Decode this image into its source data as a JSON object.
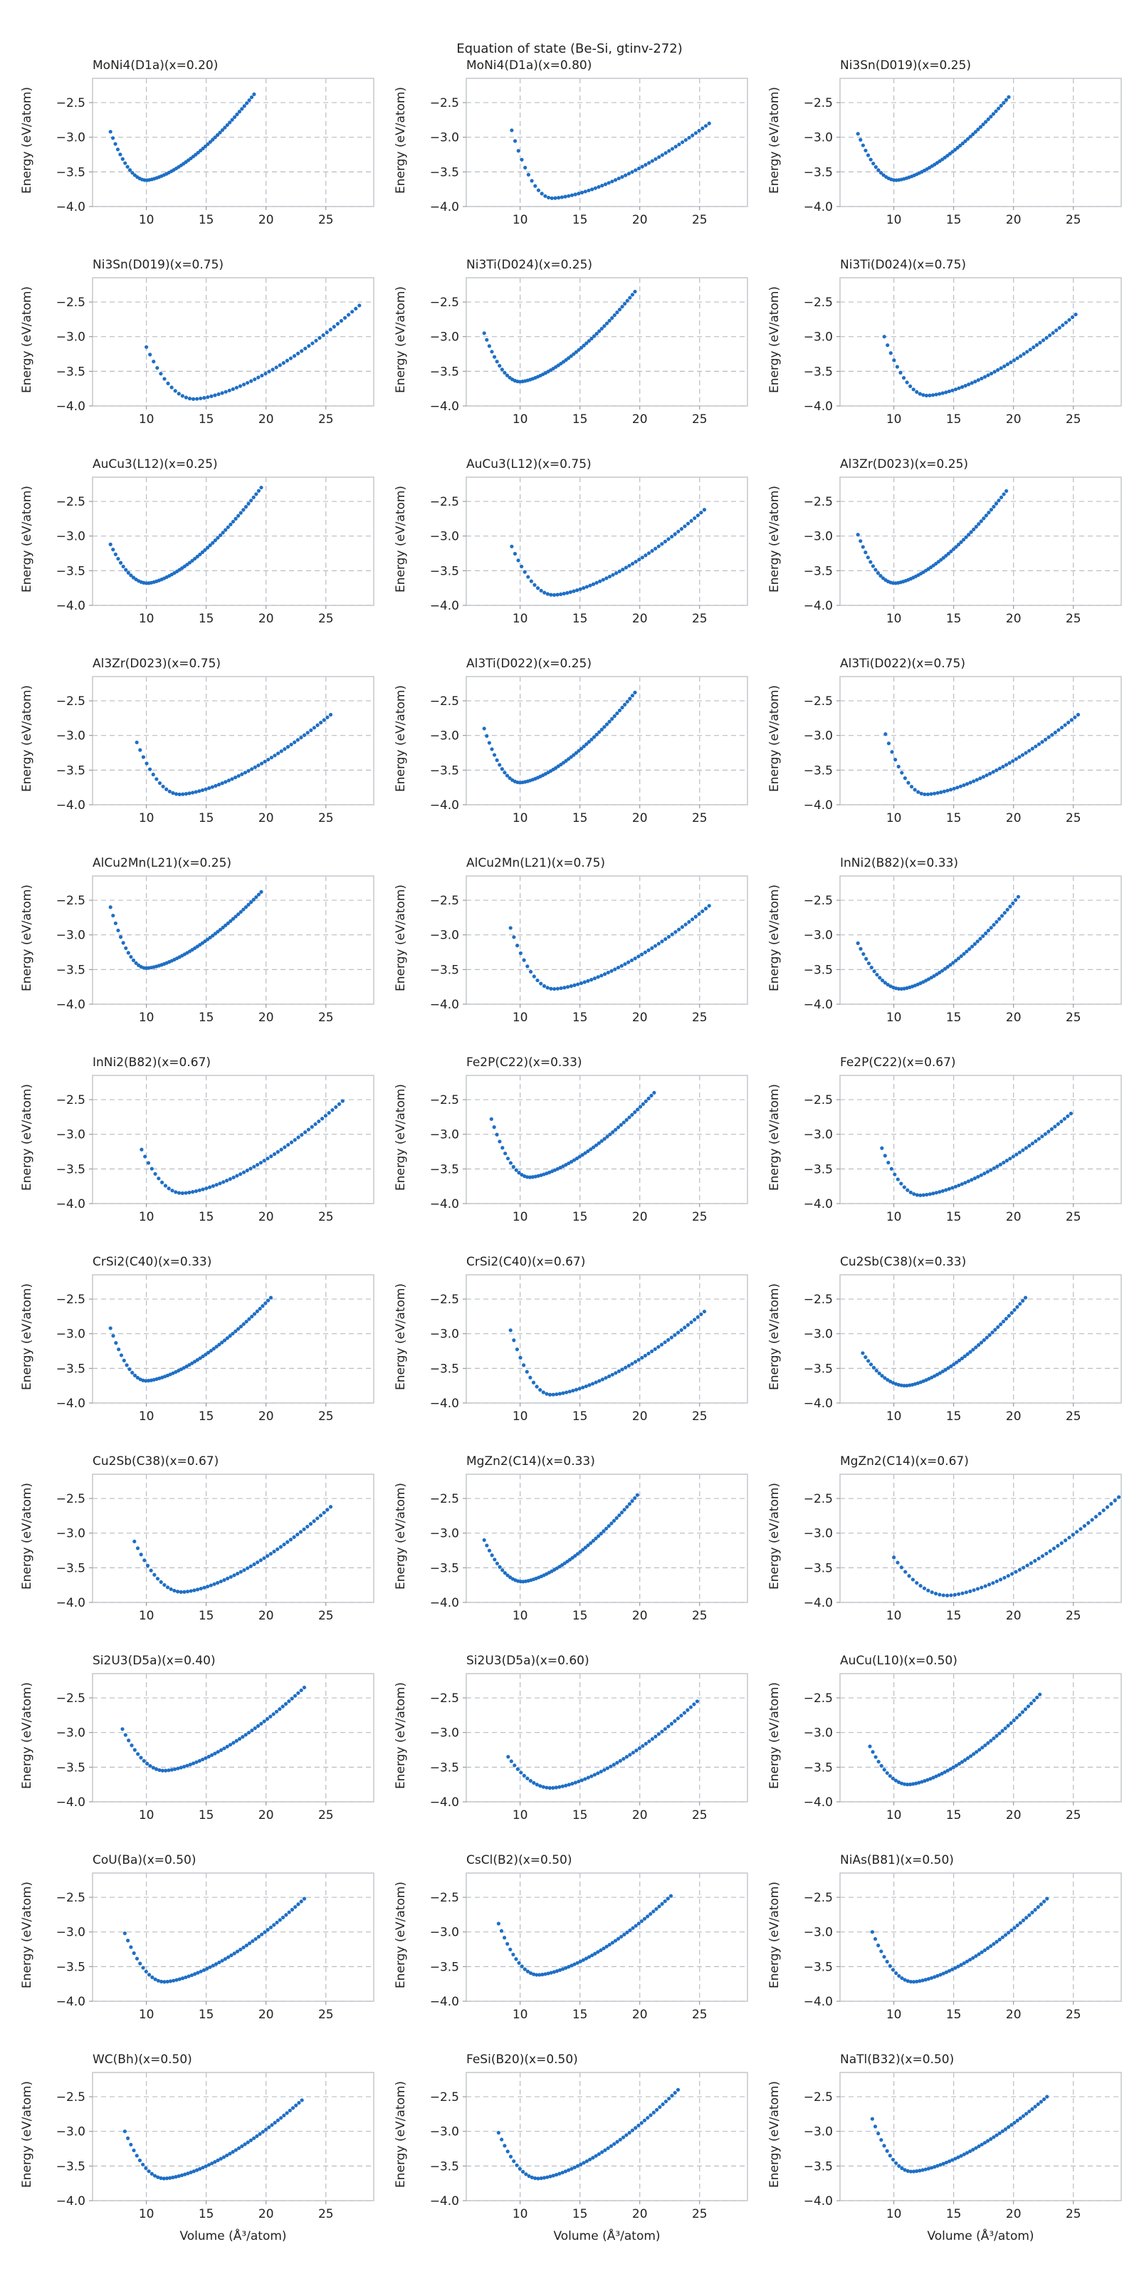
{
  "figure": {
    "title": "Equation of state (Be-Si, gtinv-272)"
  },
  "chart_data": {
    "type": "scatter",
    "xlabel": "Volume (Å³/atom)",
    "ylabel": "Energy (eV/atom)",
    "xlim": [
      5.5,
      29
    ],
    "ylim": [
      -4.0,
      -2.15
    ],
    "xticks": [
      10,
      15,
      20,
      25
    ],
    "yticks": [
      -4.0,
      -3.5,
      -3.0,
      -2.5
    ],
    "grid": true,
    "marker_color": "#1f6fc5",
    "panels": [
      {
        "title": "MoNi4(D1a)(x=0.20)",
        "v0": 10.0,
        "vmin": 7.0,
        "vmax": 19.0,
        "emin": -3.62,
        "e_left": -2.92,
        "e_right": -2.38
      },
      {
        "title": "MoNi4(D1a)(x=0.80)",
        "v0": 12.7,
        "vmin": 9.3,
        "vmax": 25.8,
        "emin": -3.88,
        "e_left": -2.9,
        "e_right": -2.8
      },
      {
        "title": "Ni3Sn(D019)(x=0.25)",
        "v0": 10.2,
        "vmin": 7.0,
        "vmax": 19.6,
        "emin": -3.62,
        "e_left": -2.95,
        "e_right": -2.42
      },
      {
        "title": "Ni3Sn(D019)(x=0.75)",
        "v0": 14.0,
        "vmin": 10.0,
        "vmax": 27.8,
        "emin": -3.9,
        "e_left": -3.15,
        "e_right": -2.55
      },
      {
        "title": "Ni3Ti(D024)(x=0.25)",
        "v0": 10.0,
        "vmin": 7.0,
        "vmax": 19.6,
        "emin": -3.65,
        "e_left": -2.95,
        "e_right": -2.35
      },
      {
        "title": "Ni3Ti(D024)(x=0.75)",
        "v0": 12.8,
        "vmin": 9.2,
        "vmax": 25.2,
        "emin": -3.85,
        "e_left": -3.0,
        "e_right": -2.68
      },
      {
        "title": "AuCu3(L12)(x=0.25)",
        "v0": 10.1,
        "vmin": 7.0,
        "vmax": 19.6,
        "emin": -3.68,
        "e_left": -3.12,
        "e_right": -2.3
      },
      {
        "title": "AuCu3(L12)(x=0.75)",
        "v0": 12.8,
        "vmin": 9.3,
        "vmax": 25.4,
        "emin": -3.85,
        "e_left": -3.15,
        "e_right": -2.62
      },
      {
        "title": "Al3Zr(D023)(x=0.25)",
        "v0": 10.1,
        "vmin": 7.0,
        "vmax": 19.4,
        "emin": -3.68,
        "e_left": -2.98,
        "e_right": -2.35
      },
      {
        "title": "Al3Zr(D023)(x=0.75)",
        "v0": 12.8,
        "vmin": 9.2,
        "vmax": 25.4,
        "emin": -3.85,
        "e_left": -3.1,
        "e_right": -2.7
      },
      {
        "title": "Al3Ti(D022)(x=0.25)",
        "v0": 10.0,
        "vmin": 7.0,
        "vmax": 19.6,
        "emin": -3.68,
        "e_left": -2.9,
        "e_right": -2.38
      },
      {
        "title": "Al3Ti(D022)(x=0.75)",
        "v0": 12.7,
        "vmin": 9.3,
        "vmax": 25.4,
        "emin": -3.85,
        "e_left": -2.98,
        "e_right": -2.7
      },
      {
        "title": "AlCu2Mn(L21)(x=0.25)",
        "v0": 10.0,
        "vmin": 7.0,
        "vmax": 19.6,
        "emin": -3.48,
        "e_left": -2.6,
        "e_right": -2.38
      },
      {
        "title": "AlCu2Mn(L21)(x=0.75)",
        "v0": 12.8,
        "vmin": 9.2,
        "vmax": 25.8,
        "emin": -3.78,
        "e_left": -2.9,
        "e_right": -2.58
      },
      {
        "title": "InNi2(B82)(x=0.33)",
        "v0": 10.6,
        "vmin": 7.0,
        "vmax": 20.4,
        "emin": -3.78,
        "e_left": -3.12,
        "e_right": -2.45
      },
      {
        "title": "InNi2(B82)(x=0.67)",
        "v0": 13.0,
        "vmin": 9.6,
        "vmax": 26.4,
        "emin": -3.85,
        "e_left": -3.22,
        "e_right": -2.52
      },
      {
        "title": "Fe2P(C22)(x=0.33)",
        "v0": 10.8,
        "vmin": 7.6,
        "vmax": 21.2,
        "emin": -3.62,
        "e_left": -2.78,
        "e_right": -2.4
      },
      {
        "title": "Fe2P(C22)(x=0.67)",
        "v0": 12.2,
        "vmin": 9.0,
        "vmax": 24.8,
        "emin": -3.88,
        "e_left": -3.2,
        "e_right": -2.7
      },
      {
        "title": "CrSi2(C40)(x=0.33)",
        "v0": 10.0,
        "vmin": 7.0,
        "vmax": 20.4,
        "emin": -3.68,
        "e_left": -2.92,
        "e_right": -2.48
      },
      {
        "title": "CrSi2(C40)(x=0.67)",
        "v0": 12.6,
        "vmin": 9.2,
        "vmax": 25.4,
        "emin": -3.88,
        "e_left": -2.95,
        "e_right": -2.68
      },
      {
        "title": "Cu2Sb(C38)(x=0.33)",
        "v0": 11.0,
        "vmin": 7.4,
        "vmax": 21.0,
        "emin": -3.75,
        "e_left": -3.28,
        "e_right": -2.48
      },
      {
        "title": "Cu2Sb(C38)(x=0.67)",
        "v0": 13.0,
        "vmin": 9.0,
        "vmax": 25.4,
        "emin": -3.85,
        "e_left": -3.12,
        "e_right": -2.62
      },
      {
        "title": "MgZn2(C14)(x=0.33)",
        "v0": 10.2,
        "vmin": 7.0,
        "vmax": 19.8,
        "emin": -3.7,
        "e_left": -3.1,
        "e_right": -2.45
      },
      {
        "title": "MgZn2(C14)(x=0.67)",
        "v0": 14.5,
        "vmin": 10.0,
        "vmax": 28.8,
        "emin": -3.9,
        "e_left": -3.35,
        "e_right": -2.48
      },
      {
        "title": "Si2U3(D5a)(x=0.40)",
        "v0": 11.5,
        "vmin": 8.0,
        "vmax": 23.2,
        "emin": -3.55,
        "e_left": -2.95,
        "e_right": -2.35
      },
      {
        "title": "Si2U3(D5a)(x=0.60)",
        "v0": 12.6,
        "vmin": 9.0,
        "vmax": 24.8,
        "emin": -3.8,
        "e_left": -3.35,
        "e_right": -2.55
      },
      {
        "title": "AuCu(L10)(x=0.50)",
        "v0": 11.2,
        "vmin": 8.0,
        "vmax": 22.2,
        "emin": -3.75,
        "e_left": -3.2,
        "e_right": -2.45
      },
      {
        "title": "CoU(Ba)(x=0.50)",
        "v0": 11.5,
        "vmin": 8.2,
        "vmax": 23.2,
        "emin": -3.72,
        "e_left": -3.02,
        "e_right": -2.52
      },
      {
        "title": "CsCl(B2)(x=0.50)",
        "v0": 11.5,
        "vmin": 8.2,
        "vmax": 22.6,
        "emin": -3.62,
        "e_left": -2.88,
        "e_right": -2.48
      },
      {
        "title": "NiAs(B81)(x=0.50)",
        "v0": 11.6,
        "vmin": 8.2,
        "vmax": 22.8,
        "emin": -3.72,
        "e_left": -3.0,
        "e_right": -2.52
      },
      {
        "title": "WC(Bh)(x=0.50)",
        "v0": 11.5,
        "vmin": 8.2,
        "vmax": 23.0,
        "emin": -3.68,
        "e_left": -3.0,
        "e_right": -2.55
      },
      {
        "title": "FeSi(B20)(x=0.50)",
        "v0": 11.5,
        "vmin": 8.2,
        "vmax": 23.2,
        "emin": -3.68,
        "e_left": -3.02,
        "e_right": -2.4
      },
      {
        "title": "NaTl(B32)(x=0.50)",
        "v0": 11.5,
        "vmin": 8.2,
        "vmax": 22.8,
        "emin": -3.58,
        "e_left": -2.82,
        "e_right": -2.5
      }
    ]
  }
}
